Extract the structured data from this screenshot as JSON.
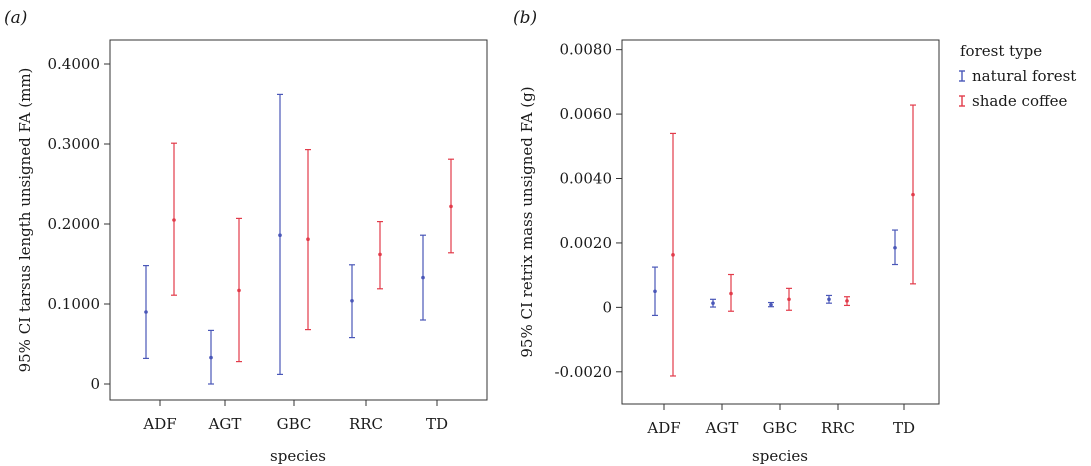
{
  "legend": {
    "title": "forest type",
    "entries": [
      {
        "label": "natural forest",
        "color": "#4a57b8"
      },
      {
        "label": "shade coffee",
        "color": "#e23b4a"
      }
    ]
  },
  "chart_data": [
    {
      "type": "errorbar",
      "panel_label": "(a)",
      "xlabel": "species",
      "ylabel": "95% CI tarsus length unsigned FA (mm)",
      "categories": [
        "ADF",
        "AGT",
        "GBC",
        "RRC",
        "TD"
      ],
      "ylim": [
        -0.02,
        0.43
      ],
      "yticks": [
        0,
        0.1,
        0.2,
        0.3,
        0.4
      ],
      "ytick_labels": [
        "0",
        "0.1000",
        "0.2000",
        "0.3000",
        "0.4000"
      ],
      "grid": false,
      "series": [
        {
          "name": "natural forest",
          "color": "#4a57b8",
          "mean": [
            0.09,
            0.033,
            0.186,
            0.104,
            0.133
          ],
          "lower": [
            0.032,
            0.0,
            0.012,
            0.058,
            0.08
          ],
          "upper": [
            0.148,
            0.067,
            0.362,
            0.149,
            0.186
          ]
        },
        {
          "name": "shade coffee",
          "color": "#e23b4a",
          "mean": [
            0.205,
            0.117,
            0.181,
            0.162,
            0.222
          ],
          "lower": [
            0.111,
            0.028,
            0.068,
            0.119,
            0.164
          ],
          "upper": [
            0.301,
            0.207,
            0.293,
            0.203,
            0.281
          ]
        }
      ]
    },
    {
      "type": "errorbar",
      "panel_label": "(b)",
      "xlabel": "species",
      "ylabel": "95% CI retrix mass unsigned FA (g)",
      "categories": [
        "ADF",
        "AGT",
        "GBC",
        "RRC",
        "TD"
      ],
      "ylim": [
        -0.003,
        0.0083
      ],
      "yticks": [
        -0.002,
        0,
        0.002,
        0.004,
        0.006,
        0.008
      ],
      "ytick_labels": [
        "-0.0020",
        "0",
        "0.0020",
        "0.0040",
        "0.0060",
        "0.0080"
      ],
      "grid": false,
      "series": [
        {
          "name": "natural forest",
          "color": "#4a57b8",
          "mean": [
            0.0005,
            0.00013,
            8e-05,
            0.00025,
            0.00185
          ],
          "lower": [
            -0.00025,
            1e-05,
            2e-05,
            0.00013,
            0.00133
          ],
          "upper": [
            0.00125,
            0.00025,
            0.00015,
            0.00037,
            0.0024
          ]
        },
        {
          "name": "shade coffee",
          "color": "#e23b4a",
          "mean": [
            0.00163,
            0.00043,
            0.00025,
            0.0002,
            0.0035
          ],
          "lower": [
            -0.00213,
            -0.00012,
            -9e-05,
            6e-05,
            0.00073
          ],
          "upper": [
            0.0054,
            0.00102,
            0.00059,
            0.00033,
            0.00628
          ]
        }
      ]
    }
  ]
}
